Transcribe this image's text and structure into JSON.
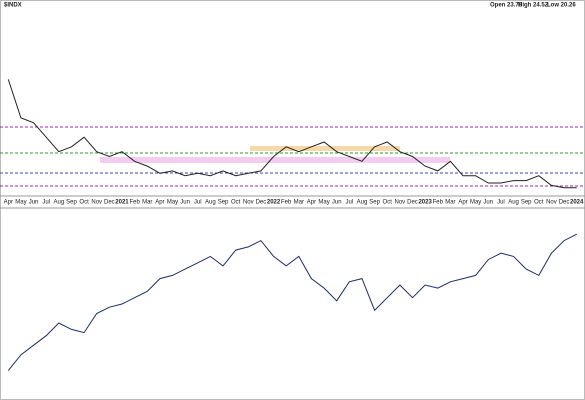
{
  "header": {
    "symbol": "$INDX",
    "open": "Open 23.78",
    "high": "High 24.52",
    "low": "Low 20.26"
  },
  "chart_data": {
    "type": "line",
    "categories": [
      "Apr",
      "May",
      "Jun",
      "Jul",
      "Aug",
      "Sep",
      "Oct",
      "Nov",
      "Dec",
      "2021",
      "Feb",
      "Mar",
      "Apr",
      "May",
      "Jun",
      "Jul",
      "Aug",
      "Sep",
      "Oct",
      "Nov",
      "Dec",
      "2022",
      "Feb",
      "Mar",
      "Apr",
      "May",
      "Jun",
      "Jul",
      "Aug",
      "Sep",
      "Oct",
      "Nov",
      "Dec",
      "2023",
      "Feb",
      "Mar",
      "Apr",
      "May",
      "Jun",
      "Jul",
      "Aug",
      "Sep",
      "Oct",
      "Nov",
      "Dec",
      "2024"
    ],
    "series": [
      {
        "color": "#222222",
        "values": [
          36,
          28,
          27,
          24,
          21,
          22,
          24,
          21,
          20,
          21,
          19,
          18,
          16.5,
          17,
          16,
          16.5,
          16,
          17,
          16,
          16.5,
          17,
          20,
          22,
          21,
          22,
          23,
          21,
          20,
          19,
          22,
          23,
          21,
          20,
          18,
          17,
          19,
          16,
          16,
          14.5,
          14.5,
          15,
          15,
          16,
          14,
          13.5,
          13.5
        ]
      },
      {
        "color": "#1f2a6b",
        "axis": "y2",
        "values": [
          2700,
          2950,
          3100,
          3250,
          3450,
          3350,
          3300,
          3600,
          3700,
          3750,
          3850,
          3950,
          4150,
          4200,
          4300,
          4400,
          4500,
          4350,
          4600,
          4650,
          4750,
          4500,
          4350,
          4500,
          4150,
          4000,
          3800,
          4100,
          4150,
          3650,
          3850,
          4050,
          3850,
          4050,
          4000,
          4100,
          4150,
          4200,
          4450,
          4550,
          4500,
          4300,
          4200,
          4550,
          4750,
          4850
        ]
      }
    ],
    "ylim": [
      12,
      50
    ],
    "y2lim": [
      2300,
      5200
    ]
  }
}
